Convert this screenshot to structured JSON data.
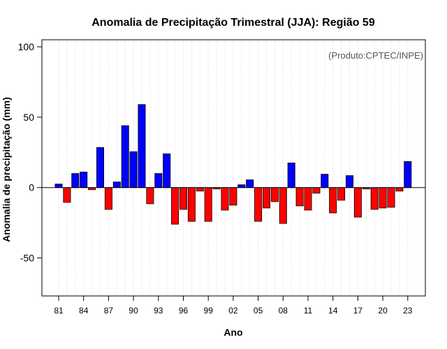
{
  "chart_data": {
    "type": "bar",
    "title": "Anomalia de Precipitação Trimestral (JJA): Região 59",
    "xlabel": "Ano",
    "ylabel": "Anomalia de precipitação (mm)",
    "credit": "(Produto:CPTEC/INPE)",
    "ylim": [
      -77,
      105
    ],
    "yticks": [
      -50,
      0,
      50,
      100
    ],
    "grid": "vertical-dotted",
    "positive_color": "#0000ff",
    "negative_color": "#ff0000",
    "baseline_color": "#000000",
    "categories": [
      "1981",
      "1982",
      "1983",
      "1984",
      "1985",
      "1986",
      "1987",
      "1988",
      "1989",
      "1990",
      "1991",
      "1992",
      "1993",
      "1994",
      "1995",
      "1996",
      "1997",
      "1998",
      "1999",
      "2000",
      "2001",
      "2002",
      "2003",
      "2004",
      "2005",
      "2006",
      "2007",
      "2008",
      "2009",
      "2010",
      "2011",
      "2012",
      "2013",
      "2014",
      "2015",
      "2016",
      "2017",
      "2018",
      "2019",
      "2020",
      "2021",
      "2022",
      "2023"
    ],
    "values": [
      2.5,
      -10.5,
      10,
      11,
      -1.5,
      28.5,
      -15.5,
      4,
      44,
      25.5,
      59,
      -11.5,
      10,
      24,
      -26,
      -15.5,
      -24,
      -2.5,
      -24,
      -1,
      -16,
      -12.5,
      2,
      5.5,
      -24,
      -14.5,
      -10,
      -25.5,
      17.5,
      -13,
      -16,
      -4,
      9.5,
      -18,
      -9,
      8.5,
      -21,
      -1,
      -15.5,
      -14.5,
      -14,
      -2.5,
      18.5
    ],
    "xtick_labels": [
      "81",
      "84",
      "87",
      "90",
      "93",
      "96",
      "99",
      "02",
      "05",
      "08",
      "11",
      "14",
      "17",
      "20",
      "23"
    ],
    "xtick_indices": [
      0,
      3,
      6,
      9,
      12,
      15,
      18,
      21,
      24,
      27,
      30,
      33,
      36,
      39,
      42
    ]
  }
}
